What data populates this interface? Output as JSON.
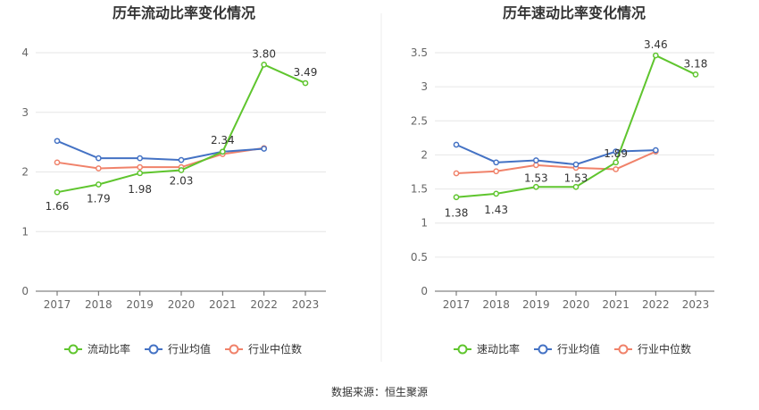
{
  "source_text": "数据来源：恒生聚源",
  "colors": {
    "main": "#5fc52e",
    "avg": "#4472c4",
    "median": "#f0826a",
    "grid": "#e6e6e6",
    "axis": "#666666"
  },
  "chart_data": [
    {
      "type": "line",
      "title": "历年流动比率变化情况",
      "x": [
        "2017",
        "2018",
        "2019",
        "2020",
        "2021",
        "2022",
        "2023"
      ],
      "ylim": [
        0,
        4
      ],
      "yticks": [
        "0",
        "1",
        "2",
        "3",
        "4"
      ],
      "grid": true,
      "legend_position": "bottom",
      "series": [
        {
          "name": "流动比率",
          "role": "main",
          "values": [
            1.66,
            1.79,
            1.98,
            2.03,
            2.34,
            3.8,
            3.49
          ],
          "labels": [
            "1.66",
            "1.79",
            "1.98",
            "2.03",
            "2.34",
            "3.80",
            "3.49"
          ]
        },
        {
          "name": "行业均值",
          "role": "avg",
          "values": [
            2.52,
            2.23,
            2.23,
            2.2,
            2.34,
            2.39,
            null
          ]
        },
        {
          "name": "行业中位数",
          "role": "median",
          "values": [
            2.16,
            2.06,
            2.08,
            2.08,
            2.3,
            2.4,
            null
          ]
        }
      ]
    },
    {
      "type": "line",
      "title": "历年速动比率变化情况",
      "x": [
        "2017",
        "2018",
        "2019",
        "2020",
        "2021",
        "2022",
        "2023"
      ],
      "ylim": [
        0,
        3.5
      ],
      "yticks": [
        "0",
        "0.5",
        "1",
        "1.5",
        "2",
        "2.5",
        "3",
        "3.5"
      ],
      "grid": true,
      "legend_position": "bottom",
      "series": [
        {
          "name": "速动比率",
          "role": "main",
          "values": [
            1.38,
            1.43,
            1.53,
            1.53,
            1.89,
            3.46,
            3.18
          ],
          "labels": [
            "1.38",
            "1.43",
            "1.53",
            "1.53",
            "1.89",
            "3.46",
            "3.18"
          ]
        },
        {
          "name": "行业均值",
          "role": "avg",
          "values": [
            2.15,
            1.89,
            1.92,
            1.86,
            2.05,
            2.07,
            null
          ]
        },
        {
          "name": "行业中位数",
          "role": "median",
          "values": [
            1.73,
            1.76,
            1.85,
            1.81,
            1.79,
            2.05,
            null
          ]
        }
      ]
    }
  ]
}
